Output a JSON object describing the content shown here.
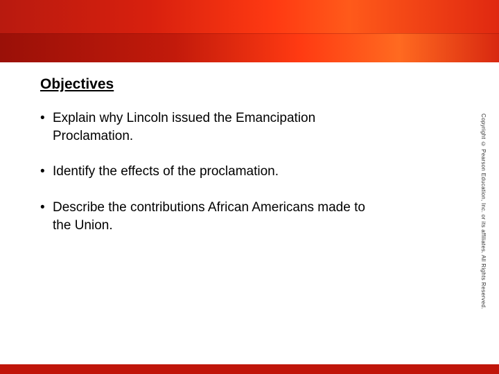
{
  "heading": "Objectives",
  "bullets": [
    "Explain why Lincoln issued the Emancipation Proclamation.",
    "Identify the effects of the proclamation.",
    "Describe the contributions African Americans made to the Union."
  ],
  "copyright": "Copyright © Pearson Education, Inc. or its affiliates. All Rights Reserved.",
  "colors": {
    "header_gradient_start": "#b81a0f",
    "header_gradient_end": "#ff3a12",
    "footer_color": "#c0150a",
    "text_color": "#000000",
    "background": "#ffffff"
  },
  "typography": {
    "heading_fontsize": 21,
    "heading_weight": "bold",
    "heading_underline": true,
    "body_fontsize": 19,
    "font_family": "Verdana"
  }
}
